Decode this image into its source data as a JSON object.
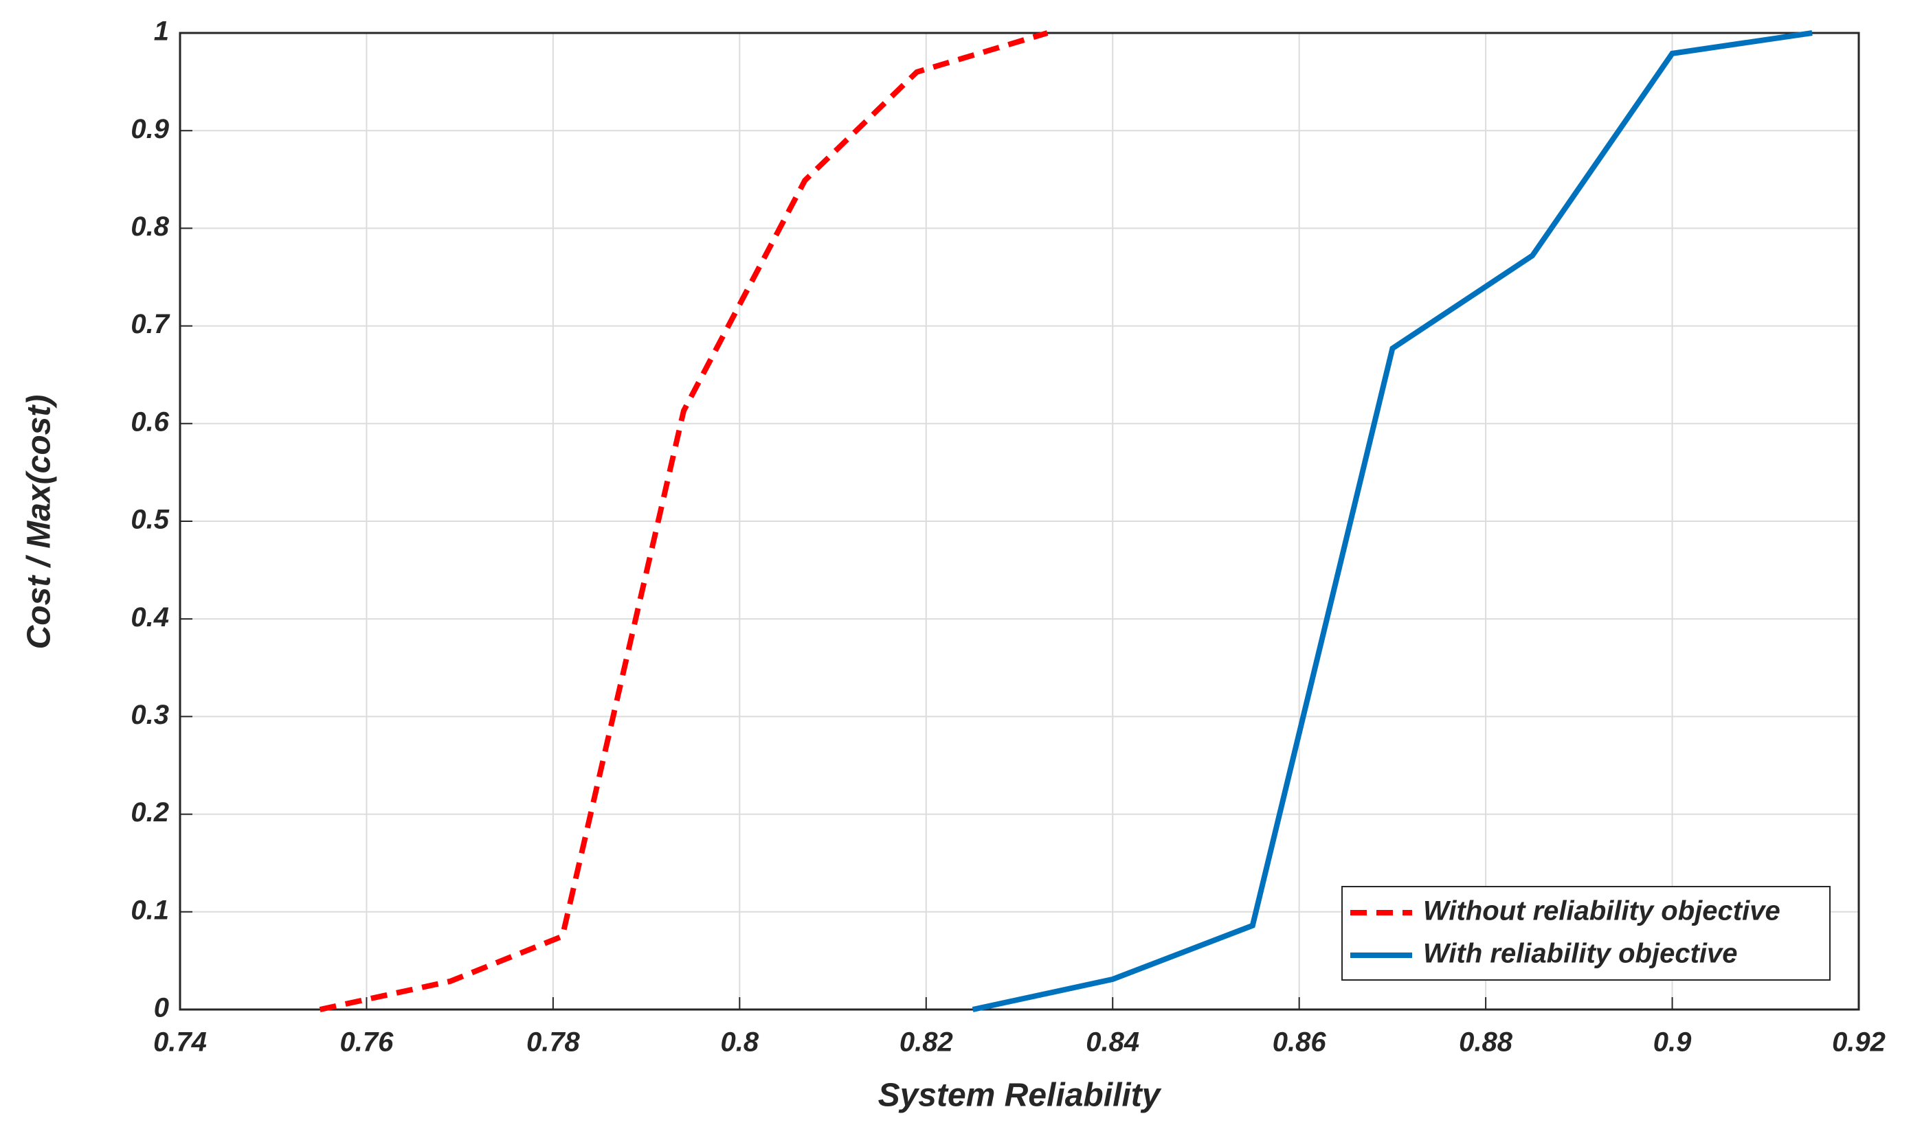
{
  "chart_data": {
    "type": "line",
    "xlabel": "System Reliability",
    "ylabel": "Cost / Max(cost)",
    "xlim": [
      0.74,
      0.92
    ],
    "xticks": [
      0.74,
      0.76,
      0.78,
      0.8,
      0.82,
      0.84,
      0.86,
      0.88,
      0.9,
      0.92
    ],
    "ylim": [
      0,
      1
    ],
    "yticks": [
      0,
      0.1,
      0.2,
      0.3,
      0.4,
      0.5,
      0.6,
      0.7,
      0.8,
      0.9,
      1
    ],
    "grid": true,
    "legend": "lower right",
    "series": [
      {
        "name": "Without reliability objective",
        "color": "#ff0000",
        "dash": "dashed",
        "x": [
          0.755,
          0.769,
          0.781,
          0.794,
          0.807,
          0.819,
          0.833
        ],
        "values": [
          0,
          0.029,
          0.075,
          0.613,
          0.849,
          0.96,
          1
        ]
      },
      {
        "name": "With reliability objective",
        "color": "#0072bd",
        "dash": "solid",
        "x": [
          0.825,
          0.84,
          0.855,
          0.87,
          0.885,
          0.9,
          0.915
        ],
        "values": [
          0,
          0.031,
          0.086,
          0.677,
          0.772,
          0.979,
          1
        ]
      }
    ]
  }
}
